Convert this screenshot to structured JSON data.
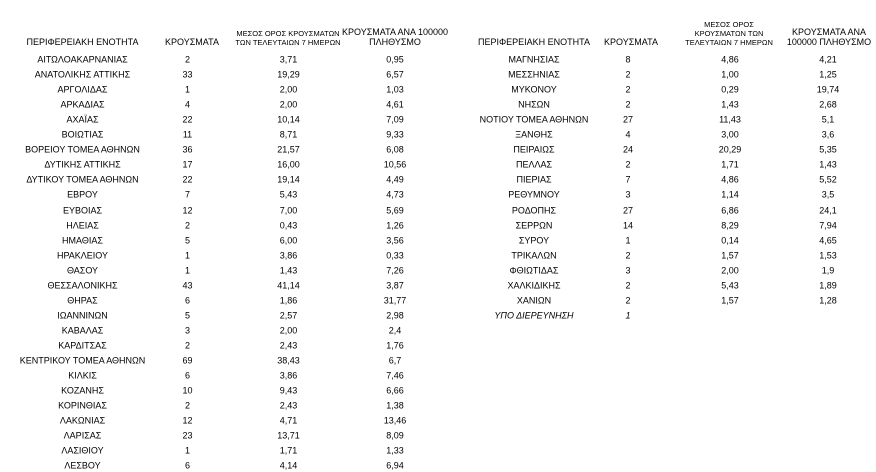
{
  "tables": [
    {
      "headers": [
        "ΠΕΡΙΦΕΡΕΙΑΚΗ ΕΝΟΤΗΤΑ",
        "ΚΡΟΥΣΜΑΤΑ",
        "ΜΕΣΟΣ ΟΡΟΣ ΚΡΟΥΣΜΑΤΩΝ ΤΩΝ ΤΕΛΕΥΤΑΙΩΝ 7 ΗΜΕΡΩΝ",
        "ΚΡΟΥΣΜΑΤΑ ΑΝΑ 100000 ΠΛΗΘΥΣΜΟ"
      ],
      "rows": [
        [
          "ΑΙΤΩΛΟΑΚΑΡΝΑΝΙΑΣ",
          "2",
          "3,71",
          "0,95"
        ],
        [
          "ΑΝΑΤΟΛΙΚΗΣ ΑΤΤΙΚΗΣ",
          "33",
          "19,29",
          "6,57"
        ],
        [
          "ΑΡΓΟΛΙΔΑΣ",
          "1",
          "2,00",
          "1,03"
        ],
        [
          "ΑΡΚΑΔΙΑΣ",
          "4",
          "2,00",
          "4,61"
        ],
        [
          "ΑΧΑΪΑΣ",
          "22",
          "10,14",
          "7,09"
        ],
        [
          "ΒΟΙΩΤΙΑΣ",
          "11",
          "8,71",
          "9,33"
        ],
        [
          "ΒΟΡΕΙΟΥ ΤΟΜΕΑ ΑΘΗΝΩΝ",
          "36",
          "21,57",
          "6,08"
        ],
        [
          "ΔΥΤΙΚΗΣ ΑΤΤΙΚΗΣ",
          "17",
          "16,00",
          "10,56"
        ],
        [
          "ΔΥΤΙΚΟΥ ΤΟΜΕΑ ΑΘΗΝΩΝ",
          "22",
          "19,14",
          "4,49"
        ],
        [
          "ΕΒΡΟΥ",
          "7",
          "5,43",
          "4,73"
        ],
        [
          "ΕΥΒΟΙΑΣ",
          "12",
          "7,00",
          "5,69"
        ],
        [
          "ΗΛΕΙΑΣ",
          "2",
          "0,43",
          "1,26"
        ],
        [
          "ΗΜΑΘΙΑΣ",
          "5",
          "6,00",
          "3,56"
        ],
        [
          "ΗΡΑΚΛΕΙΟΥ",
          "1",
          "3,86",
          "0,33"
        ],
        [
          "ΘΑΣΟΥ",
          "1",
          "1,43",
          "7,26"
        ],
        [
          "ΘΕΣΣΑΛΟΝΙΚΗΣ",
          "43",
          "41,14",
          "3,87"
        ],
        [
          "ΘΗΡΑΣ",
          "6",
          "1,86",
          "31,77"
        ],
        [
          "ΙΩΑΝΝΙΝΩΝ",
          "5",
          "2,57",
          "2,98"
        ],
        [
          "ΚΑΒΑΛΑΣ",
          "3",
          "2,00",
          "2,4"
        ],
        [
          "ΚΑΡΔΙΤΣΑΣ",
          "2",
          "2,43",
          "1,76"
        ],
        [
          "ΚΕΝΤΡΙΚΟΥ ΤΟΜΕΑ ΑΘΗΝΩΝ",
          "69",
          "38,43",
          "6,7"
        ],
        [
          "ΚΙΛΚΙΣ",
          "6",
          "3,86",
          "7,46"
        ],
        [
          "ΚΟΖΑΝΗΣ",
          "10",
          "9,43",
          "6,66"
        ],
        [
          "ΚΟΡΙΝΘΙΑΣ",
          "2",
          "2,43",
          "1,38"
        ],
        [
          "ΛΑΚΩΝΙΑΣ",
          "12",
          "4,71",
          "13,46"
        ],
        [
          "ΛΑΡΙΣΑΣ",
          "23",
          "13,71",
          "8,09"
        ],
        [
          "ΛΑΣΙΘΙΟΥ",
          "1",
          "1,71",
          "1,33"
        ],
        [
          "ΛΕΣΒΟΥ",
          "6",
          "4,14",
          "6,94"
        ]
      ]
    },
    {
      "headers": [
        "ΠΕΡΙΦΕΡΕΙΑΚΗ ΕΝΟΤΗΤΑ",
        "ΚΡΟΥΣΜΑΤΑ",
        "ΜΕΣΟΣ ΟΡΟΣ ΚΡΟΥΣΜΑΤΩΝ ΤΩΝ ΤΕΛΕΥΤΑΙΩΝ 7 ΗΜΕΡΩΝ",
        "ΚΡΟΥΣΜΑΤΑ ΑΝΑ 100000 ΠΛΗΘΥΣΜΟ"
      ],
      "rows": [
        [
          "ΜΑΓΝΗΣΙΑΣ",
          "8",
          "4,86",
          "4,21"
        ],
        [
          "ΜΕΣΣΗΝΙΑΣ",
          "2",
          "1,00",
          "1,25"
        ],
        [
          "ΜΥΚΟΝΟΥ",
          "2",
          "0,29",
          "19,74"
        ],
        [
          "ΝΗΣΩΝ",
          "2",
          "1,43",
          "2,68"
        ],
        [
          "ΝΟΤΙΟΥ ΤΟΜΕΑ ΑΘΗΝΩΝ",
          "27",
          "11,43",
          "5,1"
        ],
        [
          "ΞΑΝΘΗΣ",
          "4",
          "3,00",
          "3,6"
        ],
        [
          "ΠΕΙΡΑΙΩΣ",
          "24",
          "20,29",
          "5,35"
        ],
        [
          "ΠΕΛΛΑΣ",
          "2",
          "1,71",
          "1,43"
        ],
        [
          "ΠΙΕΡΙΑΣ",
          "7",
          "4,86",
          "5,52"
        ],
        [
          "ΡΕΘΥΜΝΟΥ",
          "3",
          "1,14",
          "3,5"
        ],
        [
          "ΡΟΔΟΠΗΣ",
          "27",
          "6,86",
          "24,1"
        ],
        [
          "ΣΕΡΡΩΝ",
          "14",
          "8,29",
          "7,94"
        ],
        [
          "ΣΥΡΟΥ",
          "1",
          "0,14",
          "4,65"
        ],
        [
          "ΤΡΙΚΑΛΩΝ",
          "2",
          "1,57",
          "1,53"
        ],
        [
          "ΦΘΙΩΤΙΔΑΣ",
          "3",
          "2,00",
          "1,9"
        ],
        [
          "ΧΑΛΚΙΔΙΚΗΣ",
          "2",
          "5,43",
          "1,89"
        ],
        [
          "ΧΑΝΙΩΝ",
          "2",
          "1,57",
          "1,28"
        ],
        [
          "ΥΠΟ ΔΙΕΡΕΥΝΗΣΗ",
          "1"
        ]
      ]
    }
  ]
}
